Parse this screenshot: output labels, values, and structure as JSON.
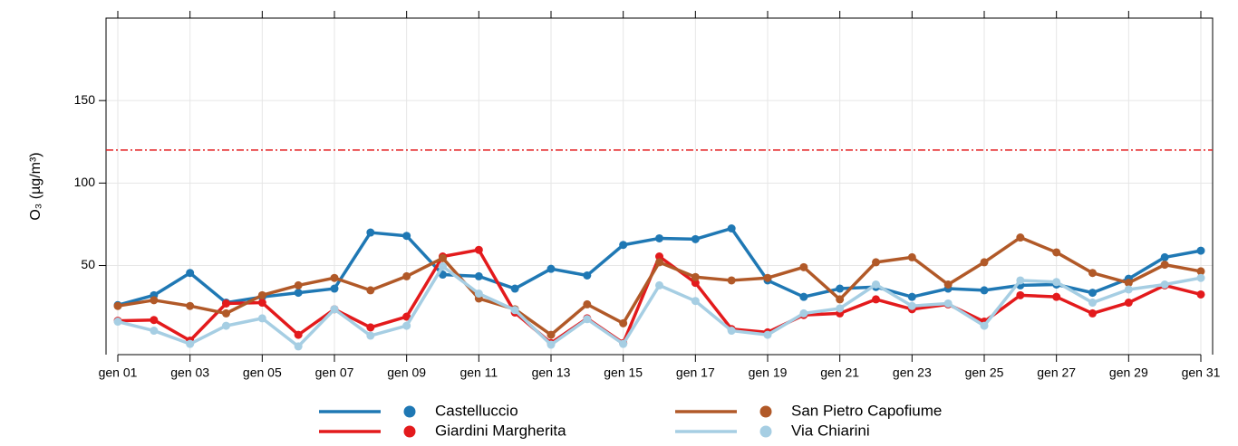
{
  "chart_data": {
    "type": "line",
    "y_label": "O₃ (µg/m³)",
    "categories": [
      "gen 01",
      null,
      "gen 03",
      null,
      "gen 05",
      null,
      "gen 07",
      null,
      "gen 09",
      null,
      "gen 11",
      null,
      "gen 13",
      null,
      "gen 15",
      null,
      "gen 17",
      null,
      "gen 19",
      null,
      "gen 21",
      null,
      "gen 23",
      null,
      "gen 25",
      null,
      "gen 27",
      null,
      "gen 29",
      null,
      "gen 31"
    ],
    "series": [
      {
        "name": "Castelluccio",
        "color": "#1f78b4",
        "values": [
          26,
          32,
          45.5,
          27.5,
          31,
          33.5,
          36,
          70,
          68,
          44.5,
          43.5,
          36,
          48,
          44,
          62.5,
          66.5,
          66,
          72.5,
          41,
          31,
          36,
          37,
          31,
          36,
          35,
          38,
          38.5,
          33.5,
          42,
          55,
          59
        ]
      },
      {
        "name": "Giardini Margherita",
        "color": "#e31a1c",
        "values": [
          16.5,
          17,
          4.5,
          27,
          27.5,
          8,
          23.5,
          12.5,
          19,
          55.5,
          59.5,
          21.5,
          3,
          18,
          3,
          55.5,
          39.5,
          11.5,
          9.5,
          20,
          21,
          29.5,
          23.5,
          26.5,
          16,
          32,
          31,
          21,
          27.5,
          38,
          32.5
        ]
      },
      {
        "name": "San Pietro Capofiume",
        "color": "#b15928",
        "values": [
          25.5,
          29,
          25.5,
          21,
          32,
          38,
          42.5,
          35,
          43.5,
          54.5,
          30,
          23.5,
          8,
          26.5,
          15,
          52,
          43,
          41,
          42.5,
          49,
          29.5,
          52,
          55,
          38.5,
          52,
          67,
          58,
          45.5,
          39.5,
          50.5,
          46.5
        ]
      },
      {
        "name": "Via Chiarini",
        "color": "#a6cee3",
        "values": [
          16,
          10.5,
          2.5,
          13.5,
          18,
          1,
          23.5,
          7.5,
          13.5,
          49.5,
          33,
          23,
          2,
          17.5,
          2.5,
          38,
          28.5,
          10.5,
          8,
          21,
          24,
          38.5,
          25.5,
          27,
          13.5,
          41,
          40,
          27.5,
          35.5,
          38.5,
          42.5
        ]
      }
    ],
    "reference_line": {
      "value": 120,
      "color": "#e31a1c"
    },
    "ylim": [
      -4,
      200
    ],
    "yticks": [
      50,
      100,
      150
    ],
    "grid": true
  }
}
